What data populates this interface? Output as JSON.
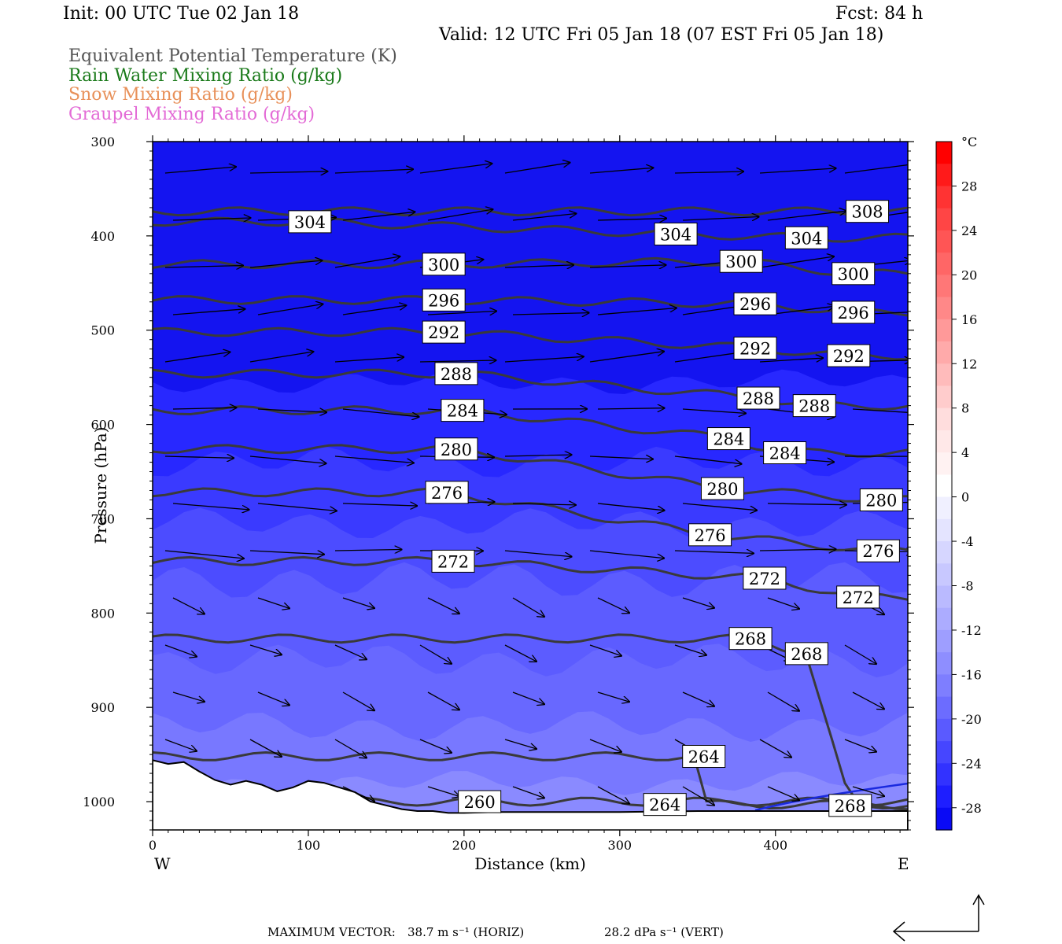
{
  "header": {
    "init": "Init: 00 UTC Tue 02 Jan 18",
    "fcst": "Fcst:   84 h",
    "valid": "Valid: 12 UTC Fri 05 Jan 18 (07 EST Fri 05 Jan 18)"
  },
  "legend": [
    {
      "text": "Equivalent Potential Temperature (K)",
      "color": "#555555"
    },
    {
      "text": "Rain Water Mixing Ratio (g/kg)",
      "color": "#1a7a1a"
    },
    {
      "text": "Snow Mixing Ratio (g/kg)",
      "color": "#e8915a"
    },
    {
      "text": "Graupel Mixing Ratio (g/kg)",
      "color": "#e36bd6"
    }
  ],
  "footer": {
    "max_label": "MAXIMUM VECTOR:",
    "horiz": "38.7 m s⁻¹ (HORIZ)",
    "vert": "28.2 dPa s⁻¹ (VERT)"
  },
  "chart_data": {
    "type": "heatmap",
    "title": "",
    "xlabel": "Distance (km)",
    "ylabel": "Pressure (hPa)",
    "xlim": [
      0,
      485
    ],
    "ylim": [
      1030,
      300
    ],
    "x_ticks": [
      0,
      100,
      200,
      300,
      400
    ],
    "y_ticks": [
      300,
      400,
      500,
      600,
      700,
      800,
      900,
      1000
    ],
    "x_end_labels": {
      "left": "W",
      "right": "E"
    },
    "colorbar": {
      "unit": "°C",
      "tick_labels": [
        "28",
        "24",
        "20",
        "16",
        "12",
        "8",
        "4",
        "0",
        "-4",
        "-8",
        "-12",
        "-16",
        "-20",
        "-24",
        "-28"
      ],
      "levels": [
        32,
        30,
        28,
        26,
        24,
        22,
        20,
        18,
        16,
        14,
        12,
        10,
        8,
        6,
        4,
        2,
        0,
        -2,
        -4,
        -6,
        -8,
        -10,
        -12,
        -14,
        -16,
        -18,
        -20,
        -22,
        -24,
        -26,
        -28,
        -30
      ],
      "colors": [
        "#ff0000",
        "#ff1a1a",
        "#ff3333",
        "#ff4545",
        "#ff5555",
        "#ff6666",
        "#ff7777",
        "#ff8888",
        "#ff9999",
        "#ffaaaa",
        "#ffbbbb",
        "#ffcccc",
        "#ffdddd",
        "#ffe8e8",
        "#fff2f2",
        "#ffffff",
        "#f0f0ff",
        "#e4e4ff",
        "#d6d6ff",
        "#c8c8ff",
        "#babaff",
        "#acacff",
        "#9e9eff",
        "#8e8eff",
        "#7e7eff",
        "#6c6cff",
        "#5a5aff",
        "#4646ff",
        "#3232ff",
        "#1e1eff",
        "#0a0af5"
      ]
    },
    "theta_e_contours": [
      {
        "value": 308,
        "label_x": [
          459
        ],
        "label_p": [
          374
        ]
      },
      {
        "value": 304,
        "label_x": [
          101,
          336,
          420
        ],
        "label_p": [
          385,
          398,
          402
        ]
      },
      {
        "value": 300,
        "label_x": [
          187,
          378,
          450
        ],
        "label_p": [
          430,
          427,
          440
        ]
      },
      {
        "value": 296,
        "label_x": [
          187,
          387,
          450
        ],
        "label_p": [
          468,
          472,
          481
        ]
      },
      {
        "value": 292,
        "label_x": [
          187,
          387,
          447
        ],
        "label_p": [
          502,
          519,
          527
        ]
      },
      {
        "value": 288,
        "label_x": [
          195,
          389,
          425
        ],
        "label_p": [
          546,
          572,
          580
        ]
      },
      {
        "value": 284,
        "label_x": [
          199,
          370,
          406
        ],
        "label_p": [
          585,
          615,
          630
        ]
      },
      {
        "value": 280,
        "label_x": [
          195,
          366,
          468
        ],
        "label_p": [
          626,
          668,
          680
        ]
      },
      {
        "value": 276,
        "label_x": [
          189,
          358,
          466
        ],
        "label_p": [
          672,
          717,
          734
        ]
      },
      {
        "value": 272,
        "label_x": [
          193,
          393,
          453
        ],
        "label_p": [
          745,
          763,
          783
        ]
      },
      {
        "value": 268,
        "label_x": [
          384,
          420,
          448
        ],
        "label_p": [
          827,
          843,
          1004
        ]
      },
      {
        "value": 264,
        "label_x": [
          354,
          329
        ],
        "label_p": [
          952,
          1003
        ]
      },
      {
        "value": 260,
        "label_x": [
          210
        ],
        "label_p": [
          1000
        ]
      }
    ],
    "vectors_note": "cross-section wind vectors (horizontal and vertical components)",
    "max_vector": {
      "horiz": 38.7,
      "horiz_unit": "m s-1",
      "vert": 28.2,
      "vert_unit": "dPa s-1"
    }
  }
}
